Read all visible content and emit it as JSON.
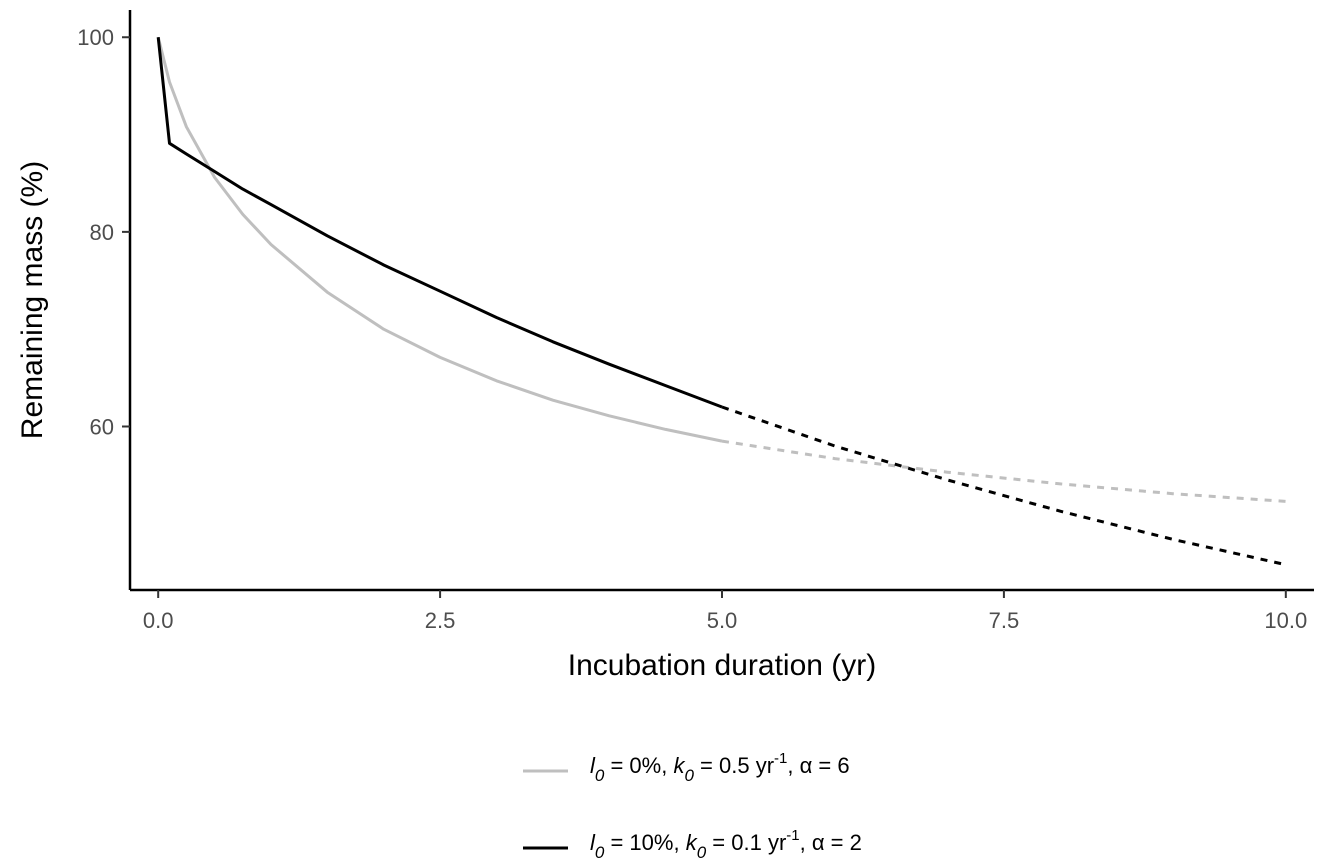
{
  "chart_data": {
    "type": "line",
    "xlabel": "Incubation duration (yr)",
    "ylabel": "Remaining mass (%)",
    "xlim": [
      -0.25,
      10.25
    ],
    "ylim": [
      43.2,
      102.8
    ],
    "x_ticks": [
      0.0,
      2.5,
      5.0,
      7.5,
      10.0
    ],
    "x_tick_labels": [
      "0.0",
      "2.5",
      "5.0",
      "7.5",
      "10.0"
    ],
    "y_ticks": [
      60,
      80,
      100
    ],
    "y_tick_labels": [
      "60",
      "80",
      "100"
    ],
    "grid": false,
    "legend_position": "bottom",
    "observed_until": 5.0,
    "series": [
      {
        "params": {
          "l0": "0%",
          "k0": "0.5",
          "alpha": "6"
        },
        "color": "#bfbfbf",
        "x": [
          0,
          0.1,
          0.25,
          0.5,
          0.75,
          1,
          1.5,
          2,
          2.5,
          3,
          3.5,
          4,
          4.5,
          5,
          6,
          7,
          8,
          9,
          10
        ],
        "y": [
          100,
          95.4,
          90.8,
          85.6,
          81.8,
          78.7,
          73.8,
          70.0,
          67.1,
          64.7,
          62.7,
          61.1,
          59.7,
          58.5,
          56.7,
          55.3,
          54.1,
          53.1,
          52.3
        ]
      },
      {
        "params": {
          "l0": "10%",
          "k0": "0.1",
          "alpha": "2"
        },
        "color": "#000000",
        "x": [
          0,
          0.1,
          0.25,
          0.5,
          0.75,
          1,
          1.5,
          2,
          2.5,
          3,
          3.5,
          4,
          4.5,
          5,
          6,
          7,
          8,
          9,
          10
        ],
        "y": [
          100,
          89.1,
          88.0,
          86.2,
          84.4,
          82.8,
          79.6,
          76.6,
          73.9,
          71.2,
          68.7,
          66.4,
          64.2,
          62.0,
          58.0,
          54.5,
          51.3,
          48.4,
          45.8
        ]
      }
    ],
    "legend": [
      {
        "l": "l",
        "l_sub": "0",
        "l_val": " = 0%, ",
        "k": "k",
        "k_sub": "0",
        "k_val": " = 0.5 yr",
        "k_sup": "-1",
        "alpha_text": ", α = 6"
      },
      {
        "l": "l",
        "l_sub": "0",
        "l_val": " = 10%, ",
        "k": "k",
        "k_sub": "0",
        "k_val": " = 0.1 yr",
        "k_sup": "-1",
        "alpha_text": ", α = 2"
      }
    ]
  }
}
